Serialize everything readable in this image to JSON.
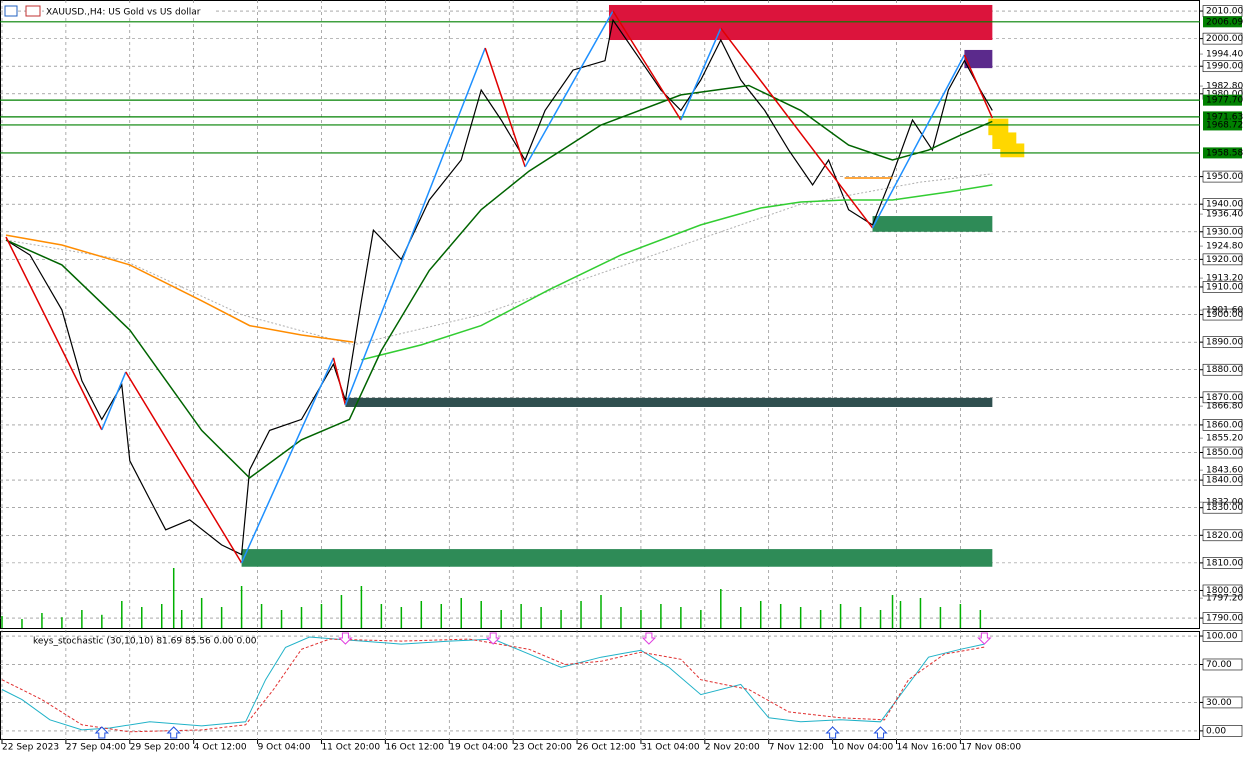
{
  "chart_data": [
    {
      "type": "line",
      "title": "XAUUSD.,H4: US Gold vs US dollar",
      "xlim": [
        0,
        300
      ],
      "ylim": [
        1786.4,
        2014
      ],
      "grid": true,
      "xticks": [
        {
          "value": 0,
          "label": "22 Sep 2023"
        },
        {
          "value": 16,
          "label": "27 Sep 04:00"
        },
        {
          "value": 32,
          "label": "29 Sep 20:00"
        },
        {
          "value": 48,
          "label": "4 Oct 12:00"
        },
        {
          "value": 64,
          "label": "9 Oct 04:00"
        },
        {
          "value": 80,
          "label": "11 Oct 20:00"
        },
        {
          "value": 96,
          "label": "16 Oct 12:00"
        },
        {
          "value": 112,
          "label": "19 Oct 04:00"
        },
        {
          "value": 128,
          "label": "23 Oct 20:00"
        },
        {
          "value": 144,
          "label": "26 Oct 12:00"
        },
        {
          "value": 160,
          "label": "31 Oct 04:00"
        },
        {
          "value": 176,
          "label": "2 Nov 20:00"
        },
        {
          "value": 192,
          "label": "7 Nov 12:00"
        },
        {
          "value": 208,
          "label": "10 Nov 04:00"
        },
        {
          "value": 224,
          "label": "14 Nov 16:00"
        },
        {
          "value": 240,
          "label": "17 Nov 08:00"
        }
      ],
      "yticks": [
        {
          "value": 2010,
          "label": "2010.00"
        },
        {
          "value": 2000,
          "label": "2000.00"
        },
        {
          "value": 1990,
          "label": "1990.00"
        },
        {
          "value": 1980,
          "label": "1980.00"
        },
        {
          "value": 1950,
          "label": "1950.00"
        },
        {
          "value": 1940,
          "label": "1940.00"
        },
        {
          "value": 1930,
          "label": "1930.00"
        },
        {
          "value": 1920,
          "label": "1920.00"
        },
        {
          "value": 1910,
          "label": "1910.00"
        },
        {
          "value": 1900,
          "label": "1900.00"
        },
        {
          "value": 1890,
          "label": "1890.00"
        },
        {
          "value": 1880,
          "label": "1880.00"
        },
        {
          "value": 1870,
          "label": "1870.00"
        },
        {
          "value": 1860,
          "label": "1860.00"
        },
        {
          "value": 1850,
          "label": "1850.00"
        },
        {
          "value": 1840,
          "label": "1840.00"
        },
        {
          "value": 1830,
          "label": "1830.00"
        },
        {
          "value": 1820,
          "label": "1820.00"
        },
        {
          "value": 1810,
          "label": "1810.00"
        },
        {
          "value": 1800,
          "label": "1800.00"
        },
        {
          "value": 1790,
          "label": "1790.00"
        }
      ],
      "minor_yticks": [
        {
          "value": 1994.4,
          "label": "1994.40"
        },
        {
          "value": 1982.8,
          "label": "1982.80"
        },
        {
          "value": 1936.4,
          "label": "1936.40"
        },
        {
          "value": 1924.8,
          "label": "1924.80"
        },
        {
          "value": 1913.2,
          "label": "1913.20"
        },
        {
          "value": 1901.6,
          "label": "1901.60"
        },
        {
          "value": 1866.8,
          "label": "1866.80"
        },
        {
          "value": 1855.2,
          "label": "1855.20"
        },
        {
          "value": 1843.6,
          "label": "1843.60"
        },
        {
          "value": 1832,
          "label": "1832.00"
        },
        {
          "value": 1797.2,
          "label": "1797.20"
        }
      ],
      "levels": {
        "color": "#008000",
        "values": [
          2006.09,
          {
            "value": 1977.7,
            "label": "1977.70"
          },
          1971.63,
          1968.72,
          1958.58
        ]
      },
      "zones": [
        {
          "x": [
            152,
            248
          ],
          "y": [
            1999.5,
            2012.2
          ],
          "color": "#dc143c"
        },
        {
          "x": [
            241,
            248
          ],
          "y": [
            1989.3,
            1995.9
          ],
          "color": "#5b2a8c"
        },
        {
          "x": [
            247,
            252
          ],
          "y": [
            1965,
            1971
          ],
          "color": "#ffd700"
        },
        {
          "x": [
            248,
            254
          ],
          "y": [
            1960,
            1966
          ],
          "color": "#ffd700"
        },
        {
          "x": [
            250,
            256
          ],
          "y": [
            1957,
            1962
          ],
          "color": "#ffd700"
        },
        {
          "x": [
            218,
            248
          ],
          "y": [
            1930,
            1935.7
          ],
          "color": "#2e8b57"
        },
        {
          "x": [
            86,
            248
          ],
          "y": [
            1866.5,
            1869.8
          ],
          "color": "#2f4f4f"
        },
        {
          "x": [
            60,
            248
          ],
          "y": [
            1808.6,
            1815
          ],
          "color": "#2e8b57"
        }
      ],
      "volumes": {
        "color": "#00b000",
        "x": [
          0,
          5,
          10,
          15,
          20,
          25,
          30,
          35,
          40,
          43,
          45,
          50,
          55,
          60,
          65,
          70,
          75,
          80,
          85,
          90,
          95,
          100,
          105,
          110,
          115,
          120,
          125,
          130,
          135,
          140,
          145,
          150,
          155,
          160,
          165,
          170,
          175,
          180,
          185,
          190,
          195,
          200,
          205,
          210,
          215,
          220,
          223,
          225,
          230,
          235,
          240,
          245
        ],
        "values": [
          20,
          15,
          25,
          18,
          30,
          22,
          45,
          35,
          40,
          100,
          30,
          50,
          35,
          70,
          40,
          30,
          35,
          40,
          55,
          70,
          40,
          35,
          45,
          40,
          50,
          45,
          30,
          40,
          35,
          30,
          45,
          55,
          35,
          30,
          40,
          35,
          30,
          65,
          35,
          45,
          40,
          35,
          30,
          40,
          35,
          30,
          55,
          45,
          50,
          35,
          40,
          30
        ]
      },
      "series": [
        {
          "color": "#000000",
          "width": 1.2,
          "x": [
            1,
            7,
            15,
            20,
            25,
            30,
            32,
            37,
            41,
            47,
            55,
            60,
            62,
            67,
            75,
            83,
            86,
            90,
            93,
            100,
            107,
            115,
            120,
            125,
            131,
            136,
            143,
            151,
            153,
            160,
            165,
            170,
            175,
            180,
            185,
            191,
            197,
            203,
            207,
            212,
            218,
            223,
            228,
            233,
            237,
            241,
            245,
            248
          ],
          "values": [
            1927,
            1921.6,
            1901.7,
            1876,
            1862,
            1874.5,
            1847,
            1833,
            1822,
            1825.6,
            1816.5,
            1813,
            1843.7,
            1858,
            1862,
            1882,
            1869,
            1905,
            1930.6,
            1920,
            1941.5,
            1956,
            1981.4,
            1970.5,
            1956,
            1974,
            1988.6,
            1992,
            2006.7,
            1992,
            1981.4,
            1974,
            1985,
            1999.5,
            1985,
            1974,
            1959.6,
            1947,
            1956,
            1938,
            1932.5,
            1950.6,
            1970.5,
            1959.6,
            1981.4,
            1992,
            1981.4,
            1974
          ]
        },
        {
          "color": "#b0b0b0",
          "width": 1,
          "dash": "2,2",
          "x": [
            1,
            30,
            60,
            88,
            120,
            160,
            200,
            230,
            248
          ],
          "values": [
            1927,
            1920,
            1900,
            1889,
            1900,
            1920,
            1940,
            1948,
            1951
          ]
        },
        {
          "color": "#ff8c00",
          "width": 1.5,
          "x": [
            1,
            15,
            32,
            50,
            62,
            75,
            88,
            150,
            211,
            223
          ],
          "values": [
            1928.8,
            1925.2,
            1918,
            1905,
            1896,
            1892.6,
            1890,
            null,
            1949.5,
            1949.5
          ]
        },
        {
          "color": "#32cd32",
          "width": 1.5,
          "x": [
            90,
            105,
            120,
            137,
            155,
            175,
            190,
            200,
            211,
            223,
            237,
            248
          ],
          "values": [
            1883.6,
            1889,
            1896,
            1909,
            1921.6,
            1932.5,
            1938.6,
            1940.8,
            1941.5,
            1941.5,
            1944.4,
            1947
          ]
        },
        {
          "color": "#006400",
          "width": 1.5,
          "x": [
            1,
            15,
            32,
            50,
            62,
            75,
            87,
            95,
            107,
            120,
            132,
            150,
            170,
            187,
            200,
            212,
            223,
            232,
            240,
            248
          ],
          "values": [
            1927,
            1918,
            1894.4,
            1858,
            1840.8,
            1854.6,
            1862,
            1887,
            1916,
            1938,
            1952,
            1968.7,
            1979.6,
            1983,
            1974,
            1961.4,
            1956,
            1959.6,
            1965,
            1970
          ]
        }
      ],
      "zigzag": {
        "up_color": "#1e90ff",
        "down_color": "#e00000",
        "x": [
          1,
          25,
          31,
          60,
          83,
          86,
          121,
          131,
          153,
          170,
          180,
          218,
          241,
          248
        ],
        "values": [
          1928.1,
          1858.2,
          1879.2,
          1810,
          1884.3,
          1867.2,
          1996.6,
          1953.5,
          2010,
          1970.5,
          2003.8,
          1931.4,
          1994.1,
          1971.2
        ]
      }
    },
    {
      "type": "line",
      "title": "keys_stochastic (30,10,10) 81.69 85.56 0.00 0.00",
      "xlim": [
        0,
        300
      ],
      "ylim": [
        -9.6,
        105.3
      ],
      "yticks": [
        {
          "value": 100,
          "label": "100.00"
        },
        {
          "value": 70,
          "label": "70.00"
        },
        {
          "value": 30,
          "label": "30.00"
        },
        {
          "value": 0,
          "label": "0.00"
        }
      ],
      "series": [
        {
          "color": "#20b2c8",
          "width": 1,
          "x": [
            0,
            5,
            12,
            20,
            27,
            37,
            50,
            61,
            66,
            71,
            77,
            87,
            100,
            112,
            123,
            132,
            140,
            150,
            160,
            167,
            175,
            185,
            192,
            200,
            210,
            220,
            226,
            232,
            240,
            246
          ],
          "values": [
            43.6,
            33,
            11.7,
            1,
            3,
            9.6,
            5.3,
            9.6,
            54,
            88,
            99,
            95.7,
            91.5,
            94.7,
            96.8,
            80.9,
            67,
            77.7,
            85,
            67,
            38.3,
            49,
            13.8,
            9.6,
            11.7,
            9.6,
            43.6,
            77.7,
            86,
            91.5
          ]
        },
        {
          "color": "#e03030",
          "width": 1,
          "dash": "3,2",
          "x": [
            0,
            10,
            20,
            32,
            50,
            61,
            68,
            75,
            82,
            100,
            117,
            132,
            141,
            150,
            160,
            170,
            175,
            187,
            197,
            210,
            221,
            227,
            236,
            246
          ],
          "values": [
            54,
            33,
            6.4,
            -1,
            1,
            6.4,
            43.6,
            86,
            96.8,
            94.7,
            96.8,
            86,
            70,
            73.4,
            83,
            75.5,
            54,
            43.6,
            20,
            13.8,
            11.7,
            54,
            80.9,
            88.3
          ]
        }
      ],
      "signals": {
        "up_color": "#2050e0",
        "down_color": "#e040e0",
        "up": [
          25,
          43,
          208,
          220
        ],
        "down": [
          86,
          123,
          162,
          246
        ]
      }
    }
  ]
}
